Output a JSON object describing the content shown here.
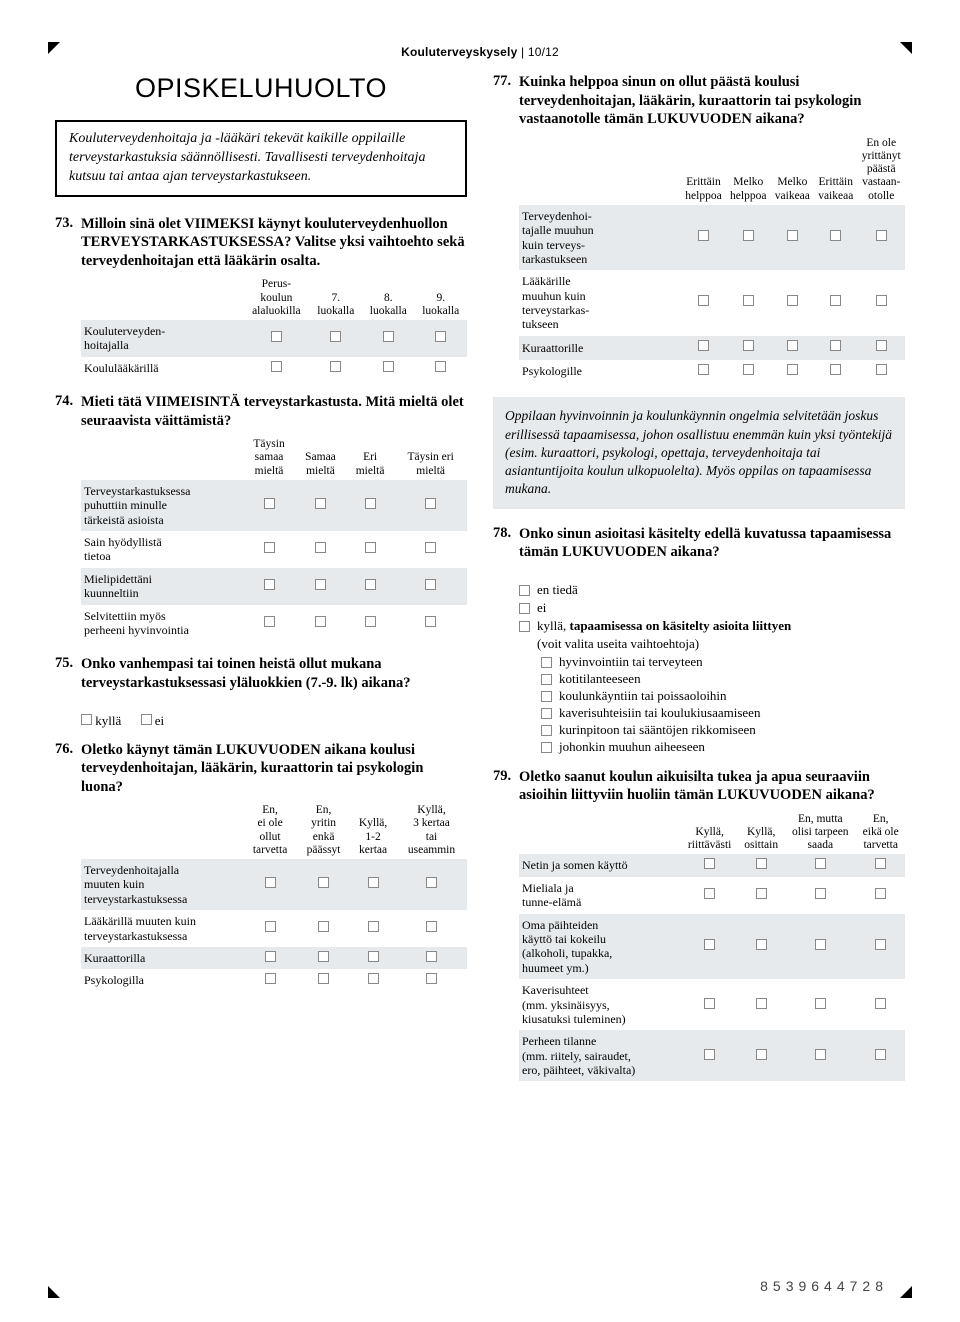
{
  "header": {
    "title_bold": "Kouluterveyskysely",
    "page_indicator": "10/12"
  },
  "section_title": "OPISKELUHUOLTO",
  "intro": "Kouluterveydenhoitaja ja -lääkäri tekevät kaikille oppilaille terveystarkastuksia säännöllisesti. Tavallisesti terveydenhoitaja kutsuu tai antaa ajan terveystarkastukseen.",
  "q73": {
    "num": "73.",
    "text": "Milloin sinä olet VIIMEKSI käynyt kouluterveydenhuollon TERVEYSTARKASTUKSESSA? Valitse yksi vaihtoehto sekä terveydenhoitajan että lääkärin osalta.",
    "cols": [
      "Perus-\nkoulun\nalaluokilla",
      "7.\nluokalla",
      "8.\nluokalla",
      "9.\nluokalla"
    ],
    "rows": [
      "Kouluterveyden-\nhoitajalla",
      "Koululääkärillä"
    ]
  },
  "q74": {
    "num": "74.",
    "text": "Mieti tätä VIIMEISINTÄ terveystarkastusta. Mitä mieltä olet seuraavista väittämistä?",
    "cols": [
      "Täysin\nsamaa\nmieltä",
      "Samaa\nmieltä",
      "Eri\nmieltä",
      "Täysin eri\nmieltä"
    ],
    "rows": [
      "Terveystarkastuksessa\npuhuttiin minulle\ntärkeistä asioista",
      "Sain hyödyllistä\ntietoa",
      "Mielipidettäni\nkuunneltiin",
      "Selvitettiin myös\nperheeni hyvinvointia"
    ]
  },
  "q75": {
    "num": "75.",
    "text": "Onko vanhempasi tai toinen heistä ollut mukana terveystarkastuksessasi yläluokkien (7.-9. lk) aikana?",
    "opts": [
      "kyllä",
      "ei"
    ]
  },
  "q76": {
    "num": "76.",
    "text": "Oletko käynyt tämän LUKUVUODEN aikana koulusi terveydenhoitajan, lääkärin, kuraattorin tai psykologin luona?",
    "cols": [
      "En,\nei ole\nollut\ntarvetta",
      "En,\nyritin\nenkä\npäässyt",
      "Kyllä,\n1-2\nkertaa",
      "Kyllä,\n3 kertaa\ntai\nuseammin"
    ],
    "rows": [
      "Terveydenhoitajalla\nmuuten kuin\nterveystarkastuksessa",
      "Lääkärillä muuten kuin\nterveystarkastuksessa",
      "Kuraattorilla",
      "Psykologilla"
    ]
  },
  "q77": {
    "num": "77.",
    "text": "Kuinka helppoa sinun on ollut päästä koulusi terveydenhoitajan, lääkärin, kuraattorin tai psykologin vastaanotolle tämän LUKUVUODEN aikana?",
    "cols": [
      "Erittäin\nhelppoa",
      "Melko\nhelppoa",
      "Melko\nvaikeaa",
      "Erittäin\nvaikeaa",
      "En ole\nyrittänyt\npäästä\nvastaan-\notolle"
    ],
    "rows": [
      "Terveydenhoi-\ntajalle muuhun\nkuin terveys-\ntarkastukseen",
      "Lääkärille\nmuuhun kuin\nterveystarkas-\ntukseen",
      "Kuraattorille",
      "Psykologille"
    ]
  },
  "info_box": "Oppilaan hyvinvoinnin ja koulunkäynnin ongelmia selvitetään joskus erillisessä tapaamisessa, johon osallistuu enemmän kuin yksi työntekijä (esim. kuraattori, psykologi, opettaja, terveydenhoitaja tai asiantuntijoita koulun ulkopuolelta). Myös oppilas on tapaamisessa mukana.",
  "q78": {
    "num": "78.",
    "text": "Onko sinun asioitasi käsitelty edellä kuvatussa tapaamisessa tämän LUKUVUODEN aikana?",
    "opts": [
      "en tiedä",
      "ei"
    ],
    "opt_bold_prefix": "kyllä, ",
    "opt_bold": "tapaamisessa on käsitelty asioita liittyen",
    "opt_tail": "(voit valita useita vaihtoehtoja)",
    "subs": [
      "hyvinvointiin tai terveyteen",
      "kotitilanteeseen",
      "koulunkäyntiin tai poissaoloihin",
      "kaverisuhteisiin tai koulukiusaamiseen",
      "kurinpitoon tai sääntöjen rikkomiseen",
      "johonkin muuhun aiheeseen"
    ]
  },
  "q79": {
    "num": "79.",
    "text": "Oletko saanut koulun aikuisilta tukea ja apua seuraaviin asioihin liittyviin huoliin tämän LUKUVUODEN aikana?",
    "cols": [
      "Kyllä,\nriittävästi",
      "Kyllä,\nosittain",
      "En, mutta\nolisi tarpeen\nsaada",
      "En,\neikä ole\ntarvetta"
    ],
    "rows": [
      "Netin ja somen käyttö",
      "Mieliala ja\ntunne-elämä",
      "Oma päihteiden\nkäyttö tai kokeilu\n(alkoholi, tupakka,\nhuumeet ym.)",
      "Kaverisuhteet\n(mm. yksinäisyys,\nkiusatuksi tuleminen)",
      "Perheen tilanne\n(mm. riitely, sairaudet,\nero, päihteet, väkivalta)"
    ]
  },
  "footer_number": "8539644728"
}
